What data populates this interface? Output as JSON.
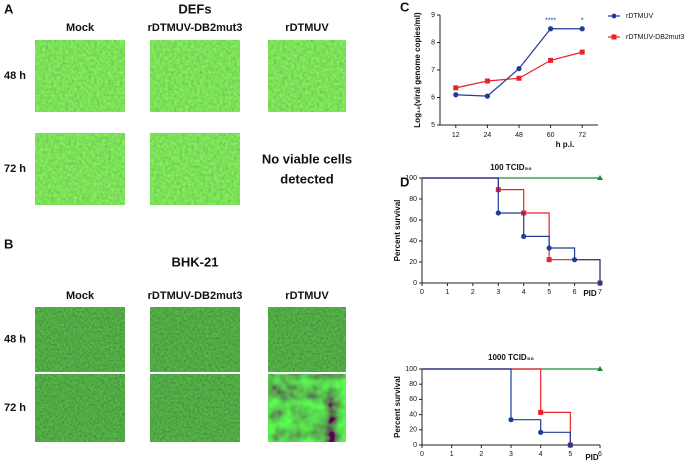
{
  "figure": {
    "panel_a": {
      "label": "A",
      "title": "DEFs",
      "columns": [
        "Mock",
        "rDTMUV-DB2mut3",
        "rDTMUV"
      ],
      "rows": [
        "48 h",
        "72 h"
      ],
      "note_lines": [
        "No viable cells",
        "detected"
      ]
    },
    "panel_b": {
      "label": "B",
      "title": "BHK-21",
      "columns": [
        "Mock",
        "rDTMUV-DB2mut3",
        "rDTMUV"
      ],
      "rows": [
        "48 h",
        "72 h"
      ]
    }
  },
  "chart_data": [
    {
      "type": "line",
      "label": "C",
      "y_label": "Log₁₀(viral genome copies/ml)",
      "x_label": "h p.i.",
      "categories": [
        "12",
        "24",
        "48",
        "60",
        "72"
      ],
      "ylim": [
        5,
        9
      ],
      "yticks": [
        5,
        6,
        7,
        8,
        9
      ],
      "annotations": [
        "****",
        "*"
      ],
      "series": [
        {
          "name": "rDTMUV",
          "color": "#1f3c98",
          "values": [
            6.1,
            6.05,
            7.05,
            8.5,
            8.5
          ]
        },
        {
          "name": "rDTMUV-DB2mut3",
          "color": "#e8232a",
          "values": [
            6.35,
            6.6,
            6.7,
            7.35,
            7.65
          ]
        }
      ]
    },
    {
      "type": "step",
      "label": "D",
      "title": "100 TCID₅₀",
      "y_label": "Percent survival",
      "x_label": "PID",
      "xlim": [
        0,
        7
      ],
      "xticks": [
        0,
        1,
        2,
        3,
        4,
        5,
        6,
        7
      ],
      "ylim": [
        0,
        100
      ],
      "yticks": [
        0,
        20,
        40,
        60,
        80,
        100
      ],
      "series": [
        {
          "color": "#1f8a3a",
          "x": [
            0,
            7
          ],
          "values": [
            100,
            100
          ]
        },
        {
          "color": "#e8232a",
          "x": [
            0,
            3,
            4,
            5,
            7
          ],
          "values": [
            100,
            88.9,
            66.7,
            22.2,
            0
          ]
        },
        {
          "color": "#1f3c98",
          "x": [
            0,
            3,
            4,
            5,
            6,
            7
          ],
          "values": [
            100,
            66.7,
            44.4,
            33.3,
            22.2,
            0
          ]
        }
      ]
    },
    {
      "type": "step",
      "title": "1000 TCID₅₀",
      "y_label": "Percent survival",
      "x_label": "PID",
      "xlim": [
        0,
        6
      ],
      "xticks": [
        0,
        1,
        2,
        3,
        4,
        5,
        6
      ],
      "ylim": [
        0,
        100
      ],
      "yticks": [
        0,
        20,
        40,
        60,
        80,
        100
      ],
      "series": [
        {
          "color": "#1f8a3a",
          "x": [
            0,
            6
          ],
          "values": [
            100,
            100
          ]
        },
        {
          "color": "#e8232a",
          "x": [
            0,
            4,
            5
          ],
          "values": [
            100,
            42.9,
            0
          ]
        },
        {
          "color": "#1f3c98",
          "x": [
            0,
            3,
            4,
            5
          ],
          "values": [
            100,
            33.3,
            16.7,
            0
          ]
        }
      ]
    }
  ]
}
